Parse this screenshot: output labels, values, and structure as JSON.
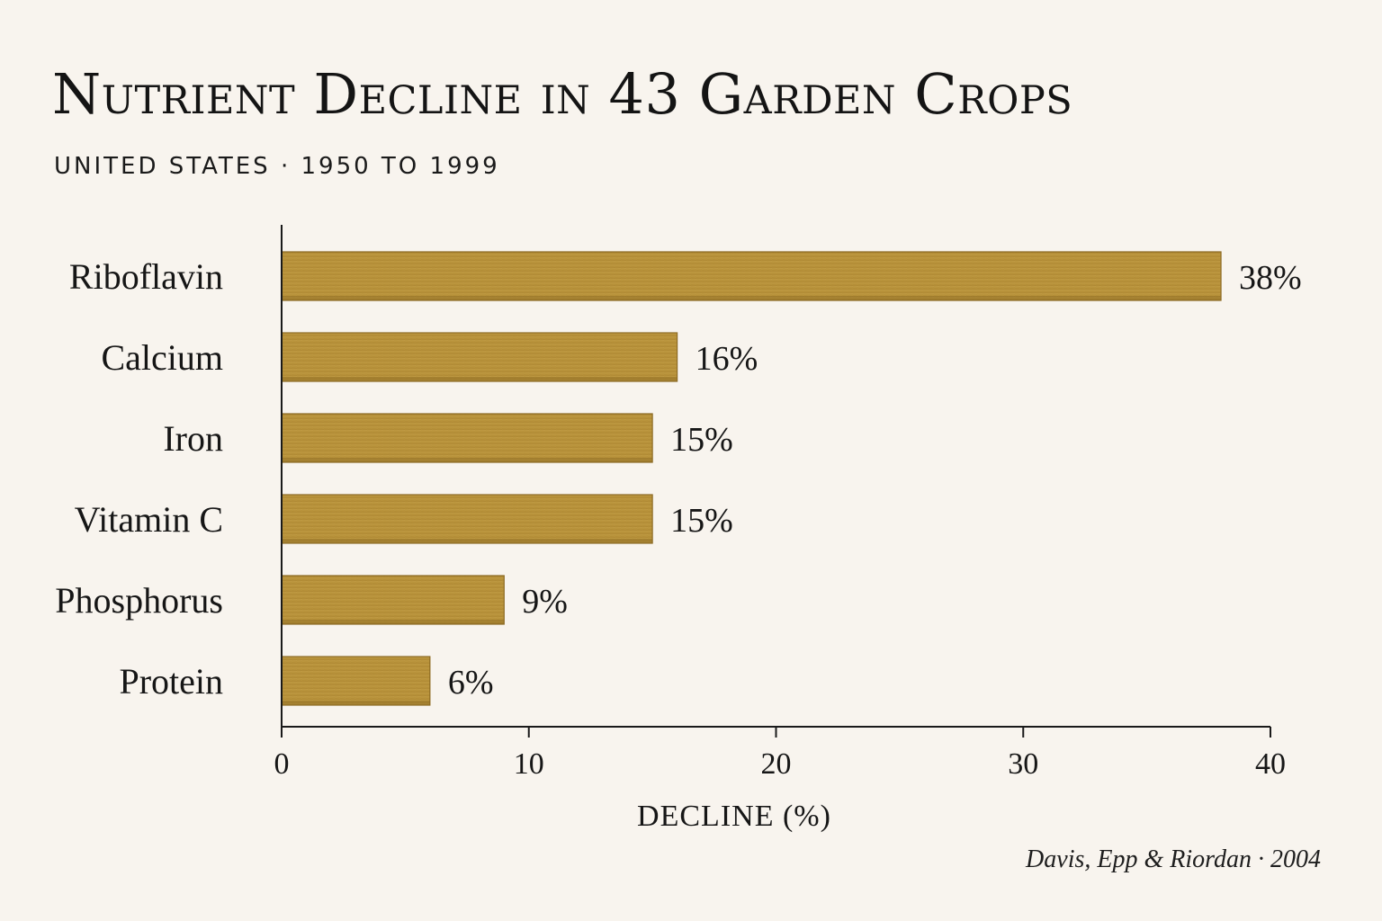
{
  "chart_data": {
    "type": "bar",
    "orientation": "horizontal",
    "title": "Nutrient Decline in 43 Garden Crops",
    "subtitle": "UNITED STATES · 1950 TO 1999",
    "xlabel": "DECLINE (%)",
    "ylabel": "",
    "xlim": [
      0,
      40
    ],
    "xticks": [
      0,
      10,
      20,
      30,
      40
    ],
    "categories": [
      "Riboflavin",
      "Calcium",
      "Iron",
      "Vitamin C",
      "Phosphorus",
      "Protein"
    ],
    "values": [
      38,
      16,
      15,
      15,
      9,
      6
    ],
    "value_labels": [
      "38%",
      "16%",
      "15%",
      "15%",
      "9%",
      "6%"
    ],
    "bar_color": "#b8923a",
    "grid": false,
    "legend": "none"
  },
  "source": "Davis, Epp & Riordan · 2004"
}
